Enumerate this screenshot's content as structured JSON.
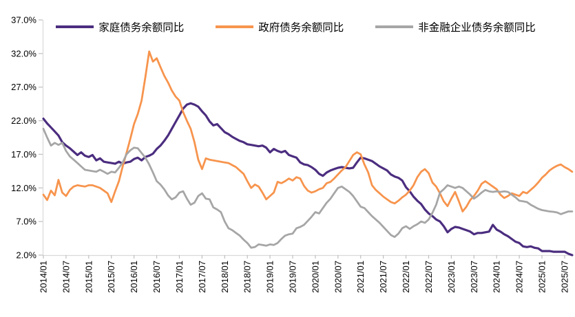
{
  "chart_data": {
    "type": "line",
    "title": "",
    "grid": false,
    "legend_position": "top",
    "x_unit": "month",
    "x_range": [
      "2014/01",
      "2025/09"
    ],
    "x_tick_labels": [
      "2014/01",
      "2014/07",
      "2015/01",
      "2015/07",
      "2016/01",
      "2016/07",
      "2017/01",
      "2017/07",
      "2018/01",
      "2018/07",
      "2019/01",
      "2019/07",
      "2020/01",
      "2020/07",
      "2021/01",
      "2021/07",
      "2022/01",
      "2022/07",
      "2023/01",
      "2023/07",
      "2024/01",
      "2024/07",
      "2025/01",
      "2025/07"
    ],
    "y_axis": {
      "min": 2,
      "max": 37,
      "step": 5,
      "format": "0.0%"
    },
    "y_tick_labels": [
      "37.0%",
      "32.0%",
      "27.0%",
      "22.0%",
      "17.0%",
      "12.0%",
      "7.0%",
      "2.0%"
    ],
    "axis_color": "#D9D9D9",
    "tick_color": "#BFBFBF",
    "series": [
      {
        "name": "家庭债务余额同比",
        "color": "#4B2D7F",
        "stroke_width": 3.2,
        "values": [
          22.3,
          21.6,
          21.0,
          20.4,
          19.8,
          18.8,
          18.3,
          17.9,
          17.4,
          16.9,
          17.3,
          16.8,
          16.6,
          16.9,
          16.1,
          16.4,
          15.9,
          15.8,
          15.7,
          15.6,
          15.9,
          15.6,
          15.8,
          15.9,
          16.3,
          16.5,
          16.1,
          16.6,
          16.8,
          17.1,
          17.8,
          18.3,
          19.0,
          19.8,
          20.8,
          21.8,
          22.8,
          23.8,
          24.4,
          24.6,
          24.4,
          24.1,
          23.4,
          22.8,
          21.9,
          21.3,
          21.5,
          20.9,
          20.3,
          20.0,
          19.6,
          19.3,
          19.0,
          18.8,
          18.5,
          18.4,
          18.3,
          18.2,
          18.3,
          18.0,
          17.3,
          17.8,
          17.5,
          17.3,
          17.5,
          16.9,
          16.7,
          16.5,
          15.8,
          15.5,
          15.4,
          15.1,
          14.7,
          14.1,
          13.8,
          14.3,
          14.6,
          14.8,
          15.0,
          15.1,
          15.0,
          14.9,
          15.0,
          15.8,
          16.5,
          16.4,
          16.2,
          16.0,
          15.6,
          15.2,
          14.9,
          14.6,
          14.0,
          13.7,
          13.5,
          13.1,
          12.1,
          11.5,
          10.7,
          10.1,
          9.6,
          8.8,
          8.2,
          7.8,
          7.3,
          7.0,
          6.3,
          5.4,
          5.9,
          6.2,
          6.1,
          5.9,
          5.7,
          5.5,
          5.1,
          5.3,
          5.3,
          5.4,
          5.5,
          6.5,
          5.8,
          5.5,
          5.1,
          4.8,
          4.4,
          4.0,
          3.8,
          3.3,
          3.2,
          3.3,
          3.1,
          3.0,
          2.6,
          2.6,
          2.6,
          2.5,
          2.5,
          2.5,
          2.5,
          2.2,
          2.0
        ]
      },
      {
        "name": "政府债务余额同比",
        "color": "#F7944D",
        "stroke_width": 2.8,
        "values": [
          11.0,
          10.2,
          11.6,
          10.9,
          13.2,
          11.3,
          10.8,
          11.7,
          12.2,
          12.4,
          12.3,
          12.2,
          12.4,
          12.4,
          12.2,
          12.0,
          11.6,
          11.2,
          9.9,
          11.5,
          13.0,
          15.2,
          17.2,
          19.3,
          21.5,
          23.0,
          25.0,
          28.5,
          32.3,
          30.8,
          31.3,
          30.0,
          28.7,
          27.7,
          26.5,
          25.6,
          25.0,
          23.3,
          22.0,
          20.8,
          18.8,
          16.2,
          14.8,
          16.4,
          16.2,
          16.1,
          16.0,
          15.9,
          15.8,
          15.7,
          15.4,
          15.1,
          14.6,
          14.1,
          13.0,
          12.0,
          12.5,
          12.2,
          11.3,
          10.3,
          10.8,
          11.3,
          12.9,
          12.7,
          13.0,
          13.4,
          13.1,
          13.6,
          13.4,
          12.3,
          11.6,
          11.3,
          11.5,
          11.8,
          12.0,
          12.7,
          12.9,
          13.4,
          14.0,
          14.6,
          15.1,
          16.0,
          16.9,
          17.3,
          17.0,
          15.5,
          14.3,
          12.4,
          11.7,
          11.2,
          10.7,
          10.3,
          9.9,
          9.7,
          10.1,
          10.6,
          11.0,
          11.6,
          12.4,
          13.6,
          14.4,
          14.8,
          14.2,
          12.8,
          12.2,
          11.2,
          10.0,
          9.3,
          10.4,
          11.4,
          10.0,
          8.5,
          9.2,
          10.2,
          10.8,
          11.6,
          12.6,
          13.0,
          12.6,
          12.2,
          11.8,
          11.0,
          10.5,
          10.8,
          11.2,
          11.0,
          10.8,
          11.4,
          11.2,
          11.7,
          12.2,
          12.8,
          13.5,
          14.0,
          14.6,
          15.0,
          15.3,
          15.5,
          15.1,
          14.8,
          14.4
        ]
      },
      {
        "name": "非金融企业债务余额同比",
        "color": "#A6A6A6",
        "stroke_width": 2.8,
        "values": [
          20.8,
          19.5,
          18.3,
          18.7,
          18.4,
          18.7,
          17.5,
          16.7,
          16.2,
          15.7,
          15.2,
          14.7,
          14.6,
          14.5,
          14.4,
          14.7,
          14.4,
          14.1,
          14.4,
          14.3,
          15.0,
          15.8,
          17.0,
          17.6,
          18.0,
          17.9,
          17.2,
          16.5,
          15.5,
          14.3,
          13.0,
          12.5,
          11.8,
          10.9,
          10.3,
          10.6,
          11.3,
          11.5,
          10.4,
          9.5,
          9.8,
          10.8,
          11.2,
          10.4,
          10.3,
          9.1,
          8.8,
          8.4,
          7.0,
          6.0,
          5.7,
          5.3,
          4.9,
          4.3,
          3.8,
          3.1,
          3.2,
          3.6,
          3.5,
          3.4,
          3.6,
          3.5,
          3.8,
          4.4,
          4.9,
          5.1,
          5.2,
          6.0,
          6.2,
          6.5,
          7.1,
          7.7,
          8.4,
          8.2,
          9.0,
          9.8,
          10.4,
          11.2,
          12.0,
          12.2,
          11.8,
          11.4,
          10.8,
          10.0,
          9.2,
          9.0,
          8.4,
          7.8,
          7.3,
          6.8,
          6.2,
          5.6,
          5.0,
          4.7,
          5.2,
          6.0,
          6.3,
          5.9,
          6.3,
          6.6,
          7.0,
          6.8,
          7.3,
          8.3,
          9.5,
          11.3,
          11.8,
          12.4,
          12.2,
          12.0,
          12.2,
          12.0,
          11.5,
          11.0,
          10.4,
          10.8,
          11.3,
          11.7,
          11.5,
          11.4,
          11.5,
          11.4,
          11.5,
          11.4,
          11.0,
          10.6,
          10.1,
          10.0,
          9.9,
          9.5,
          9.2,
          8.9,
          8.7,
          8.6,
          8.5,
          8.45,
          8.35,
          8.1,
          8.3,
          8.5,
          8.5
        ]
      }
    ]
  }
}
